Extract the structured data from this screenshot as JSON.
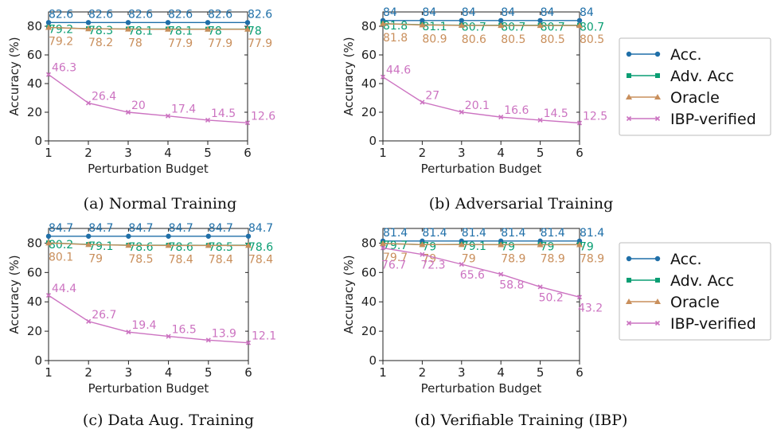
{
  "x_label": "Perturbation Budget",
  "y_label": "Accuracy (%)",
  "legend_entries": [
    "Acc.",
    "Adv. Acc",
    "Oracle",
    "IBP-verified"
  ],
  "colors": {
    "Acc.": "#1f6fa8",
    "Adv. Acc": "#0a9e73",
    "Oracle": "#c98f5c",
    "IBP-verified": "#cc73c1"
  },
  "markers": {
    "Acc.": "circle",
    "Adv. Acc": "square",
    "Oracle": "triangle",
    "IBP-verified": "x"
  },
  "chart_data": [
    {
      "type": "line",
      "caption": "(a) Normal Training",
      "x": [
        1,
        2,
        3,
        4,
        5,
        6
      ],
      "ylim": [
        0,
        90
      ],
      "yticks": [
        0,
        20,
        40,
        60,
        80
      ],
      "series": [
        {
          "name": "Acc.",
          "values": [
            82.6,
            82.6,
            82.6,
            82.6,
            82.6,
            82.6
          ]
        },
        {
          "name": "Adv. Acc",
          "values": [
            79.2,
            78.3,
            78.1,
            78.1,
            78.0,
            78.0
          ]
        },
        {
          "name": "Oracle",
          "values": [
            79.2,
            78.2,
            78.0,
            77.9,
            77.9,
            77.9
          ]
        },
        {
          "name": "IBP-verified",
          "values": [
            46.3,
            26.4,
            20.0,
            17.4,
            14.5,
            12.6
          ]
        }
      ]
    },
    {
      "type": "line",
      "caption": "(b) Adversarial Training",
      "x": [
        1,
        2,
        3,
        4,
        5,
        6
      ],
      "ylim": [
        0,
        90
      ],
      "yticks": [
        0,
        20,
        40,
        60,
        80
      ],
      "series": [
        {
          "name": "Acc.",
          "values": [
            84.0,
            84.0,
            84.0,
            84.0,
            84.0,
            84.0
          ]
        },
        {
          "name": "Adv. Acc",
          "values": [
            81.8,
            81.1,
            80.7,
            80.7,
            80.7,
            80.7
          ]
        },
        {
          "name": "Oracle",
          "values": [
            81.8,
            80.9,
            80.6,
            80.5,
            80.5,
            80.5
          ]
        },
        {
          "name": "IBP-verified",
          "values": [
            44.6,
            27.0,
            20.1,
            16.6,
            14.5,
            12.5
          ]
        }
      ]
    },
    {
      "type": "line",
      "caption": "(c) Data Aug. Training",
      "x": [
        1,
        2,
        3,
        4,
        5,
        6
      ],
      "ylim": [
        0,
        90
      ],
      "yticks": [
        0,
        20,
        40,
        60,
        80
      ],
      "series": [
        {
          "name": "Acc.",
          "values": [
            84.7,
            84.7,
            84.7,
            84.7,
            84.7,
            84.7
          ]
        },
        {
          "name": "Adv. Acc",
          "values": [
            80.2,
            79.1,
            78.6,
            78.6,
            78.5,
            78.6
          ]
        },
        {
          "name": "Oracle",
          "values": [
            80.1,
            79.0,
            78.5,
            78.4,
            78.4,
            78.4
          ]
        },
        {
          "name": "IBP-verified",
          "values": [
            44.4,
            26.7,
            19.4,
            16.5,
            13.9,
            12.1
          ]
        }
      ]
    },
    {
      "type": "line",
      "caption": "(d) Verifiable Training (IBP)",
      "x": [
        1,
        2,
        3,
        4,
        5,
        6
      ],
      "ylim": [
        0,
        90
      ],
      "yticks": [
        0,
        20,
        40,
        60,
        80
      ],
      "series": [
        {
          "name": "Acc.",
          "values": [
            81.4,
            81.4,
            81.4,
            81.4,
            81.4,
            81.4
          ]
        },
        {
          "name": "Adv. Acc",
          "values": [
            79.7,
            79.0,
            79.1,
            79.0,
            79.0,
            79.0
          ]
        },
        {
          "name": "Oracle",
          "values": [
            79.7,
            79.0,
            79.0,
            78.9,
            78.9,
            78.9
          ]
        },
        {
          "name": "IBP-verified",
          "values": [
            76.7,
            72.3,
            65.6,
            58.8,
            50.2,
            43.2
          ]
        }
      ]
    }
  ]
}
